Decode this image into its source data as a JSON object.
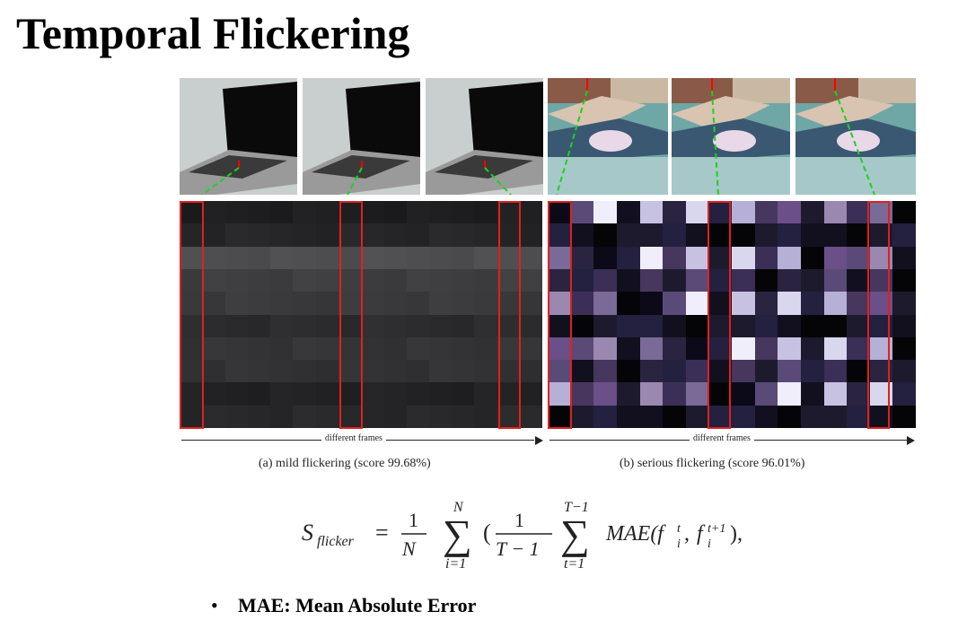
{
  "title": "Temporal Flickering",
  "figure": {
    "axis_label": "different frames",
    "caption_a": "(a) mild flickering (score 99.68%)",
    "caption_b": "(b) serious flickering (score 96.01%)"
  },
  "formula": {
    "lhs": "S",
    "lhs_sub": "flicker",
    "one": "1",
    "N": "N",
    "sum_top_1": "N",
    "sum_bot_1": "i=1",
    "T_minus_1": "T − 1",
    "sum_top_2": "T−1",
    "sum_bot_2": "t=1",
    "mae": "MAE(f",
    "tail": "),"
  },
  "bullets": [
    {
      "text": "MAE: Mean Absolute Error"
    }
  ]
}
